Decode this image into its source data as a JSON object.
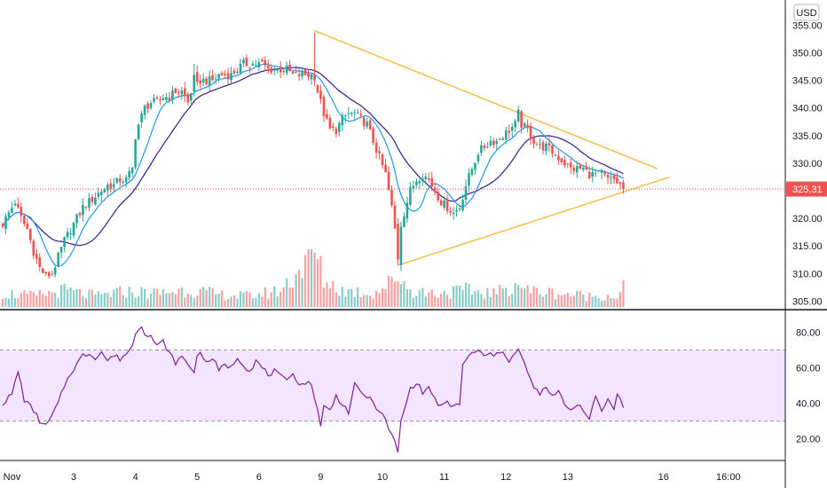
{
  "currency_badge": "USD",
  "last_price_label": "325.31",
  "colors": {
    "up": "#26a69a",
    "down": "#ef5350",
    "ma_fast": "#2196f3",
    "ma_slow": "#311b92",
    "trendline": "#f5b730",
    "rsi_line": "#7b1fa2",
    "rsi_band": "#f3e5ff",
    "price_line": "#ef5350"
  },
  "chart_data": [
    {
      "type": "candlestick",
      "ylim": [
        304,
        357
      ],
      "y_ticks": [
        "355.00",
        "350.00",
        "345.00",
        "340.00",
        "335.00",
        "330.00",
        "325.00",
        "320.00",
        "315.00",
        "310.00",
        "305.00"
      ],
      "y_tick_values": [
        355,
        350,
        345,
        340,
        335,
        330,
        325,
        320,
        315,
        310,
        305
      ],
      "x_ticks": [
        "Nov",
        "3",
        "4",
        "5",
        "6",
        "9",
        "10",
        "11",
        "12",
        "13",
        "16",
        "16:00"
      ],
      "close_anchors": [
        [
          0,
          319
        ],
        [
          2,
          321
        ],
        [
          4,
          323
        ],
        [
          6,
          320
        ],
        [
          8,
          318
        ],
        [
          10,
          314
        ],
        [
          12,
          311
        ],
        [
          14,
          309.5
        ],
        [
          16,
          310
        ],
        [
          18,
          313
        ],
        [
          20,
          316
        ],
        [
          22,
          318
        ],
        [
          24,
          320
        ],
        [
          26,
          322
        ],
        [
          28,
          323
        ],
        [
          30,
          324
        ],
        [
          32,
          325
        ],
        [
          34,
          326
        ],
        [
          36,
          326
        ],
        [
          38,
          327
        ],
        [
          40,
          327
        ],
        [
          42,
          329
        ],
        [
          43,
          335
        ],
        [
          44,
          337
        ],
        [
          46,
          340
        ],
        [
          48,
          341
        ],
        [
          50,
          341
        ],
        [
          52,
          342
        ],
        [
          54,
          342
        ],
        [
          56,
          343
        ],
        [
          58,
          343
        ],
        [
          60,
          341
        ],
        [
          61,
          343
        ],
        [
          62,
          346
        ],
        [
          63,
          344
        ],
        [
          64,
          345
        ],
        [
          66,
          345
        ],
        [
          68,
          345
        ],
        [
          70,
          346
        ],
        [
          72,
          346
        ],
        [
          74,
          346
        ],
        [
          76,
          347
        ],
        [
          78,
          348
        ],
        [
          80,
          348
        ],
        [
          82,
          348
        ],
        [
          84,
          348
        ],
        [
          86,
          347
        ],
        [
          88,
          347
        ],
        [
          90,
          347
        ],
        [
          92,
          347
        ],
        [
          94,
          346
        ],
        [
          96,
          346
        ],
        [
          98,
          346
        ],
        [
          100,
          346
        ],
        [
          101,
          345
        ],
        [
          102,
          343
        ],
        [
          104,
          339
        ],
        [
          106,
          336
        ],
        [
          108,
          336
        ],
        [
          110,
          338
        ],
        [
          112,
          339
        ],
        [
          114,
          339
        ],
        [
          116,
          338
        ],
        [
          118,
          337
        ],
        [
          120,
          334
        ],
        [
          122,
          331
        ],
        [
          124,
          328
        ],
        [
          126,
          322
        ],
        [
          127,
          318
        ],
        [
          128,
          312
        ],
        [
          129,
          319
        ],
        [
          130,
          321
        ],
        [
          132,
          325
        ],
        [
          134,
          327
        ],
        [
          136,
          328
        ],
        [
          138,
          327
        ],
        [
          140,
          325
        ],
        [
          142,
          323
        ],
        [
          144,
          322
        ],
        [
          146,
          321
        ],
        [
          148,
          322
        ],
        [
          150,
          326
        ],
        [
          152,
          329
        ],
        [
          154,
          332
        ],
        [
          156,
          333
        ],
        [
          158,
          334
        ],
        [
          160,
          334
        ],
        [
          162,
          335
        ],
        [
          164,
          336
        ],
        [
          166,
          337
        ],
        [
          167,
          339
        ],
        [
          168,
          337
        ],
        [
          170,
          336
        ],
        [
          172,
          334
        ],
        [
          174,
          333
        ],
        [
          176,
          333
        ],
        [
          178,
          332
        ],
        [
          180,
          331
        ],
        [
          182,
          330
        ],
        [
          184,
          329
        ],
        [
          186,
          329
        ],
        [
          188,
          329
        ],
        [
          190,
          328
        ],
        [
          192,
          328
        ],
        [
          194,
          328
        ],
        [
          196,
          327
        ],
        [
          198,
          327
        ],
        [
          200,
          326
        ],
        [
          201,
          325.3
        ]
      ],
      "volume_anchors": [
        [
          0,
          0.25
        ],
        [
          10,
          0.2
        ],
        [
          20,
          0.3
        ],
        [
          30,
          0.2
        ],
        [
          40,
          0.28
        ],
        [
          50,
          0.25
        ],
        [
          60,
          0.32
        ],
        [
          70,
          0.22
        ],
        [
          80,
          0.2
        ],
        [
          90,
          0.3
        ],
        [
          101,
          1.0
        ],
        [
          104,
          0.5
        ],
        [
          110,
          0.3
        ],
        [
          120,
          0.25
        ],
        [
          126,
          0.45
        ],
        [
          128,
          0.6
        ],
        [
          132,
          0.3
        ],
        [
          140,
          0.25
        ],
        [
          150,
          0.3
        ],
        [
          160,
          0.25
        ],
        [
          167,
          0.45
        ],
        [
          170,
          0.3
        ],
        [
          180,
          0.25
        ],
        [
          190,
          0.2
        ],
        [
          200,
          0.2
        ],
        [
          201,
          0.45
        ]
      ],
      "trendlines": [
        {
          "from": [
            101,
            354
          ],
          "to": [
            212,
            329
          ]
        },
        {
          "from": [
            128,
            311.5
          ],
          "to": [
            216,
            327.5
          ]
        }
      ]
    },
    {
      "type": "line",
      "name": "RSI",
      "ylim": [
        10,
        90
      ],
      "y_ticks": [
        "80.00",
        "60.00",
        "40.00",
        "20.00"
      ],
      "y_tick_values": [
        80,
        60,
        40,
        20
      ],
      "band": [
        30,
        70
      ],
      "anchors": [
        [
          0,
          40
        ],
        [
          3,
          45
        ],
        [
          5,
          58
        ],
        [
          7,
          42
        ],
        [
          10,
          36
        ],
        [
          12,
          30
        ],
        [
          14,
          27
        ],
        [
          16,
          33
        ],
        [
          18,
          40
        ],
        [
          20,
          50
        ],
        [
          22,
          57
        ],
        [
          24,
          62
        ],
        [
          26,
          67
        ],
        [
          28,
          68
        ],
        [
          30,
          66
        ],
        [
          32,
          69
        ],
        [
          34,
          64
        ],
        [
          36,
          67
        ],
        [
          38,
          65
        ],
        [
          40,
          68
        ],
        [
          42,
          72
        ],
        [
          43,
          80
        ],
        [
          45,
          84
        ],
        [
          46,
          80
        ],
        [
          48,
          78
        ],
        [
          50,
          72
        ],
        [
          52,
          75
        ],
        [
          54,
          68
        ],
        [
          56,
          63
        ],
        [
          58,
          66
        ],
        [
          60,
          62
        ],
        [
          62,
          58
        ],
        [
          63,
          66
        ],
        [
          64,
          70
        ],
        [
          66,
          62
        ],
        [
          68,
          66
        ],
        [
          70,
          58
        ],
        [
          72,
          62
        ],
        [
          74,
          60
        ],
        [
          76,
          66
        ],
        [
          78,
          62
        ],
        [
          80,
          58
        ],
        [
          82,
          64
        ],
        [
          84,
          60
        ],
        [
          86,
          56
        ],
        [
          88,
          58
        ],
        [
          90,
          55
        ],
        [
          92,
          52
        ],
        [
          94,
          58
        ],
        [
          96,
          50
        ],
        [
          98,
          52
        ],
        [
          100,
          50
        ],
        [
          101,
          44
        ],
        [
          102,
          36
        ],
        [
          103,
          28
        ],
        [
          104,
          38
        ],
        [
          106,
          36
        ],
        [
          108,
          44
        ],
        [
          110,
          40
        ],
        [
          112,
          35
        ],
        [
          114,
          50
        ],
        [
          116,
          46
        ],
        [
          118,
          44
        ],
        [
          120,
          40
        ],
        [
          122,
          36
        ],
        [
          124,
          30
        ],
        [
          126,
          22
        ],
        [
          127,
          18
        ],
        [
          128,
          12
        ],
        [
          129,
          30
        ],
        [
          130,
          36
        ],
        [
          132,
          48
        ],
        [
          134,
          52
        ],
        [
          136,
          46
        ],
        [
          138,
          49
        ],
        [
          140,
          42
        ],
        [
          142,
          38
        ],
        [
          144,
          40
        ],
        [
          146,
          38
        ],
        [
          148,
          40
        ],
        [
          149,
          62
        ],
        [
          150,
          64
        ],
        [
          152,
          68
        ],
        [
          154,
          70
        ],
        [
          156,
          66
        ],
        [
          158,
          68
        ],
        [
          160,
          67
        ],
        [
          162,
          70
        ],
        [
          164,
          64
        ],
        [
          166,
          68
        ],
        [
          167,
          70
        ],
        [
          168,
          66
        ],
        [
          170,
          58
        ],
        [
          172,
          48
        ],
        [
          174,
          46
        ],
        [
          176,
          48
        ],
        [
          178,
          44
        ],
        [
          180,
          46
        ],
        [
          182,
          40
        ],
        [
          184,
          36
        ],
        [
          186,
          40
        ],
        [
          188,
          37
        ],
        [
          190,
          30
        ],
        [
          192,
          44
        ],
        [
          194,
          36
        ],
        [
          196,
          42
        ],
        [
          198,
          38
        ],
        [
          199,
          46
        ],
        [
          200,
          42
        ],
        [
          201,
          38
        ]
      ]
    }
  ]
}
